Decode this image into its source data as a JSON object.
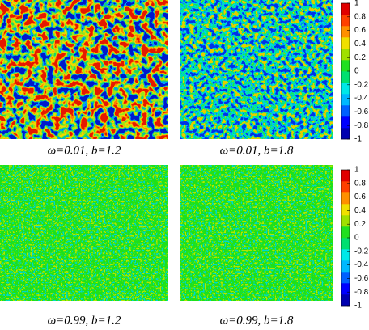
{
  "panels": [
    {
      "caption": "ω=0.01, b=1.2"
    },
    {
      "caption": "ω=0.01, b=1.8"
    },
    {
      "caption": "ω=0.99, b=1.2"
    },
    {
      "caption": "ω=0.99, b=1.8"
    }
  ],
  "colorbars": [
    {
      "zlim": [
        -1,
        1
      ],
      "ticks": [
        1,
        0.8,
        0.6,
        0.4,
        0.2,
        0,
        -0.2,
        -0.4,
        -0.6,
        -0.8,
        -1
      ],
      "colors": [
        "#0000b0",
        "#0000ff",
        "#0060ff",
        "#00b8ff",
        "#00e8e8",
        "#00e070",
        "#20e020",
        "#a0e000",
        "#f0e000",
        "#ff9000",
        "#ff4000",
        "#e00000"
      ]
    },
    {
      "zlim": [
        -1,
        1
      ],
      "ticks": [
        1,
        0.8,
        0.6,
        0.4,
        0.2,
        0,
        -0.2,
        -0.4,
        -0.6,
        -0.8,
        -1
      ],
      "colors": [
        "#0000b0",
        "#0000ff",
        "#0060ff",
        "#00b8ff",
        "#00e8e8",
        "#00e070",
        "#20e020",
        "#a0e000",
        "#f0e000",
        "#ff9000",
        "#ff4000",
        "#e00000"
      ]
    }
  ]
}
